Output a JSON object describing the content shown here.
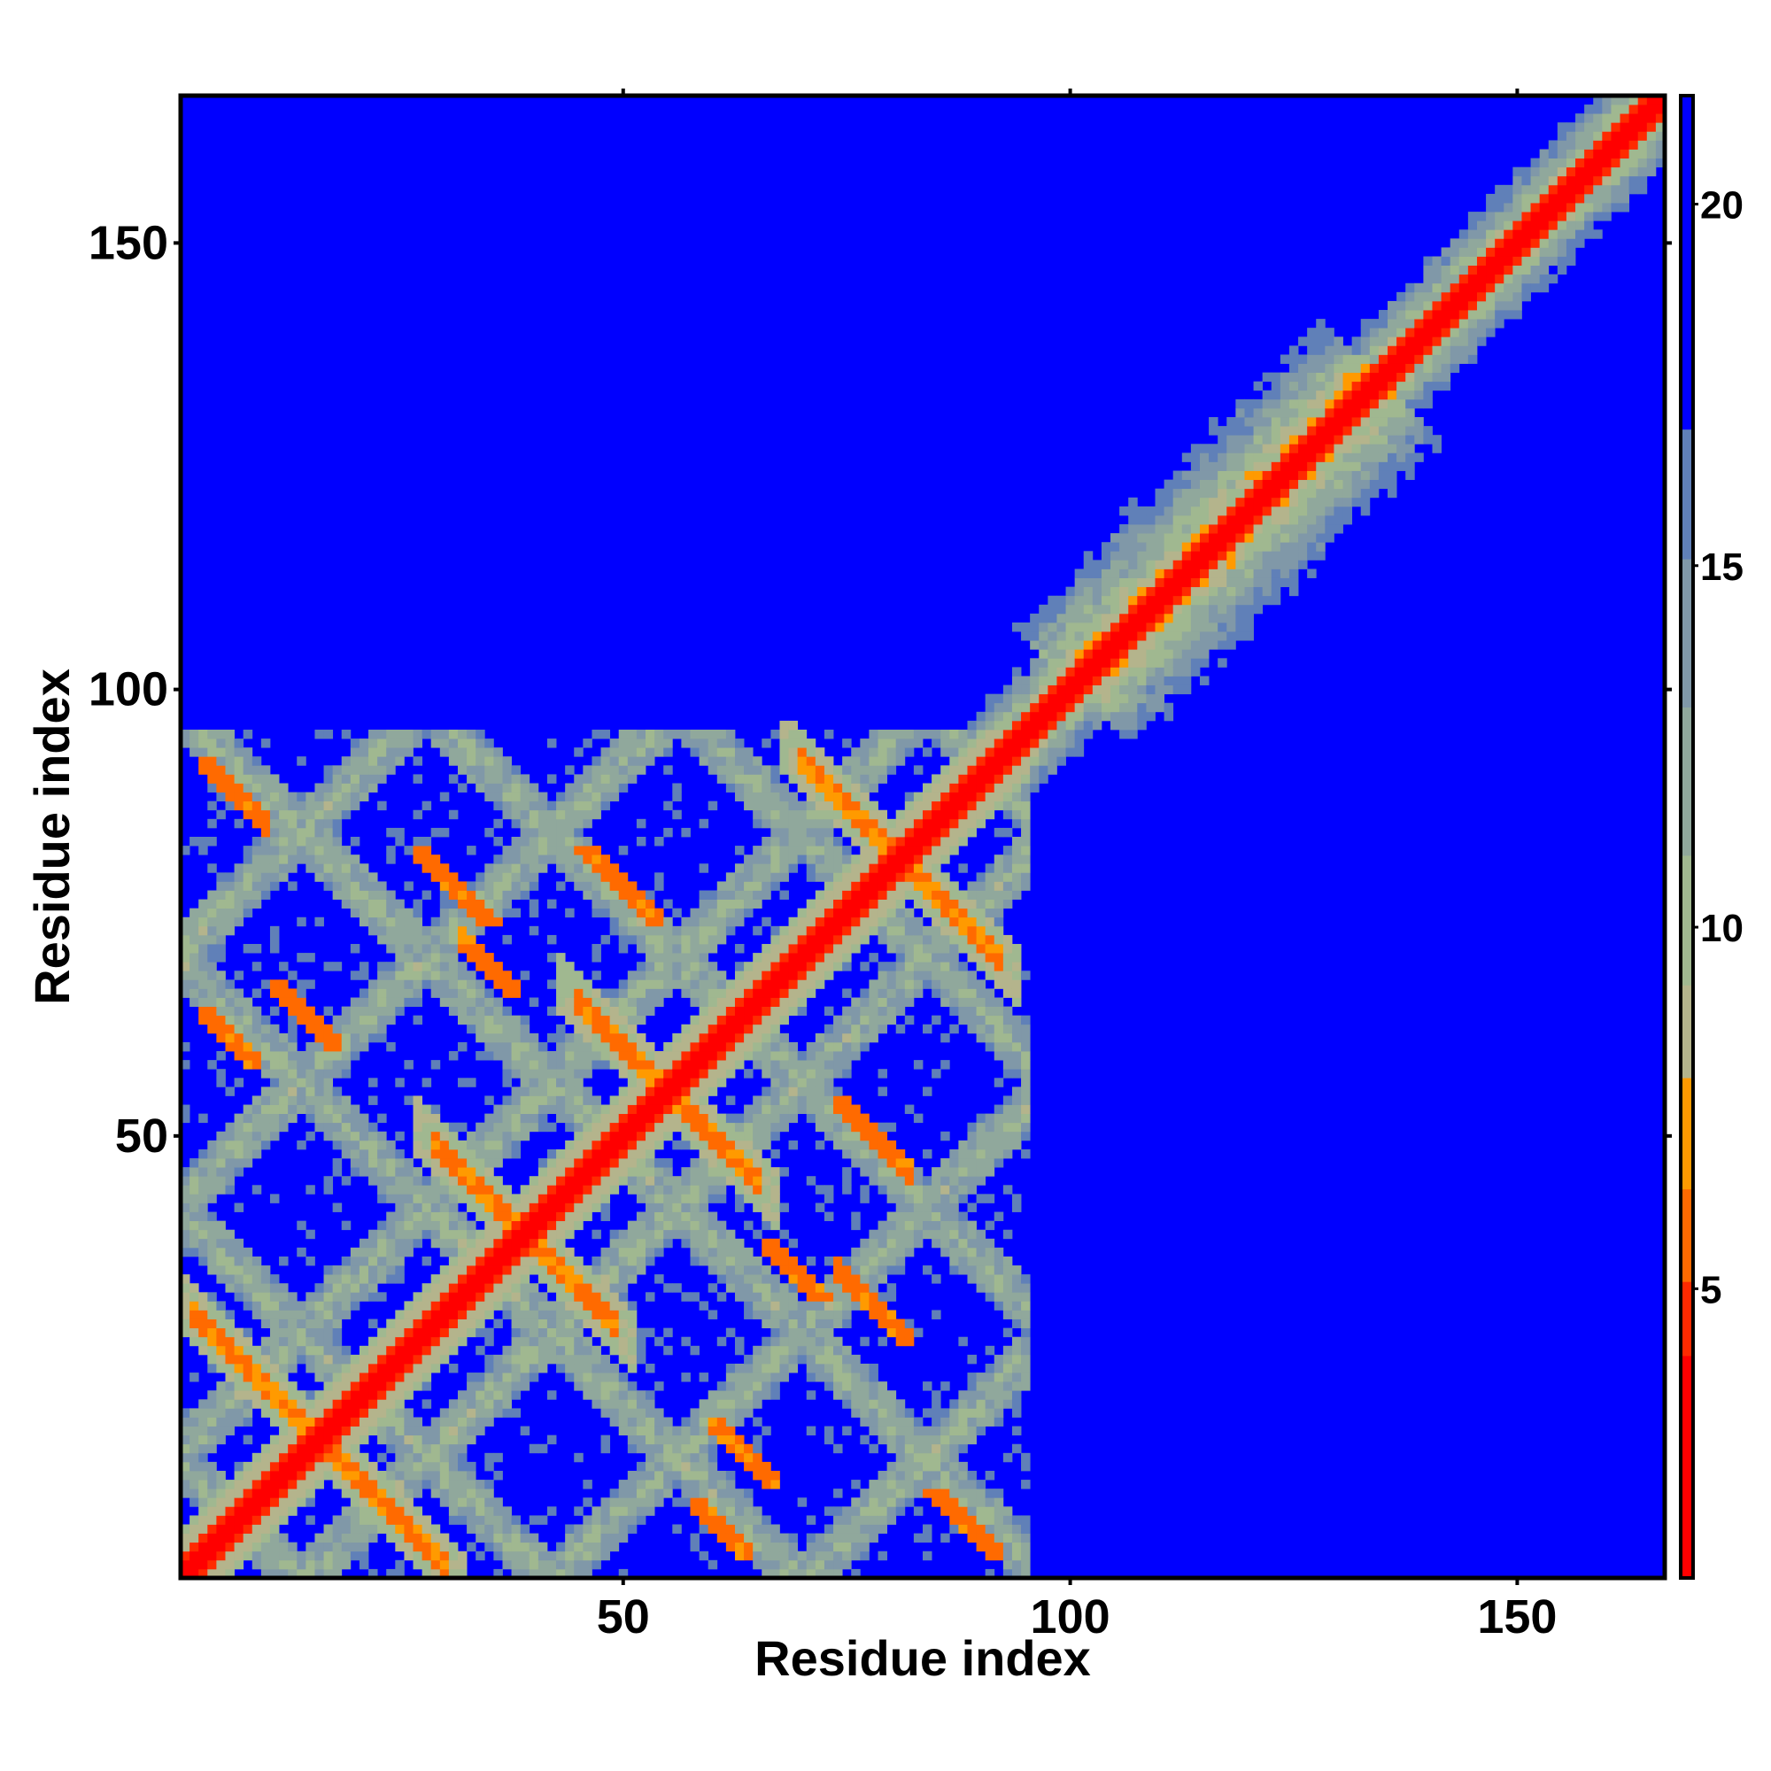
{
  "chart_data": {
    "type": "heatmap",
    "title": "",
    "xlabel": "Residue index",
    "ylabel": "Residue index",
    "n_residues": 166,
    "xlim": [
      1,
      166
    ],
    "ylim": [
      1,
      166
    ],
    "x_ticks": [
      50,
      100,
      150
    ],
    "y_ticks": [
      50,
      100,
      150
    ],
    "x_tick_labels": [
      "50",
      "100",
      "150"
    ],
    "y_tick_labels": [
      "50",
      "100",
      "150"
    ],
    "colorbar": {
      "range": [
        1,
        21.5
      ],
      "ticks": [
        5,
        10,
        15,
        20
      ],
      "tick_labels": [
        "5",
        "10",
        "15",
        "20"
      ],
      "placement": "right"
    },
    "colors": {
      "background": "#0000ff",
      "near": "#ff0000",
      "mid": "#ff8c00",
      "far": "#a0b48c",
      "max": "#0000ff"
    },
    "features": {
      "diagonal": "full length 1-166, distance below 5",
      "antidiagonal_contacts": [
        {
          "center": [
            16,
            16
          ],
          "description": "crossing band from (3,30) to (28,4)"
        },
        {
          "center": [
            39,
            39
          ],
          "description": "crossing band from (31,49) to (48,32)"
        },
        {
          "center": [
            55,
            55
          ],
          "description": "crossing band from (47,64) to (63,46)"
        },
        {
          "center": [
            81,
            81
          ],
          "description": "crossing band from (72,92) to (92,70)"
        }
      ],
      "off_diagonal_contacts": [
        {
          "rows": [
            11,
            18
          ],
          "cols": [
            60,
            67
          ]
        },
        {
          "rows": [
            27,
            36
          ],
          "cols": [
            74,
            82
          ]
        },
        {
          "rows": [
            66,
            74
          ],
          "cols": [
            32,
            38
          ]
        },
        {
          "rows": [
            74,
            82
          ],
          "cols": [
            45,
            54
          ]
        }
      ],
      "helix_region": "residues 100-130 wide near-diagonal band"
    }
  }
}
